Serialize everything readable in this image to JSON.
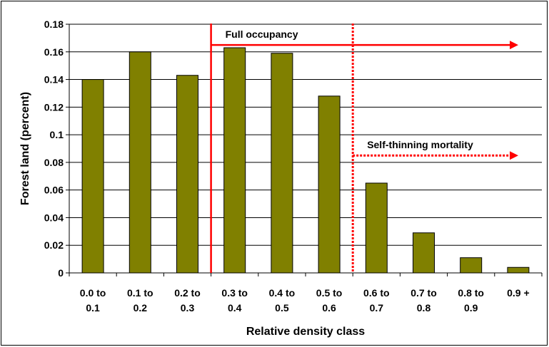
{
  "chart_data": {
    "type": "bar",
    "categories": [
      [
        "0.0 to",
        "0.1"
      ],
      [
        "0.1 to",
        "0.2"
      ],
      [
        "0.2 to",
        "0.3"
      ],
      [
        "0.3 to",
        "0.4"
      ],
      [
        "0.4 to",
        "0.5"
      ],
      [
        "0.5 to",
        "0.6"
      ],
      [
        "0.6 to",
        "0.7"
      ],
      [
        "0.7 to",
        "0.8"
      ],
      [
        "0.8 to",
        "0.9"
      ],
      [
        "0.9 +"
      ]
    ],
    "values": [
      0.14,
      0.16,
      0.143,
      0.163,
      0.159,
      0.128,
      0.065,
      0.029,
      0.011,
      0.004
    ],
    "xlabel": "Relative density class",
    "ylabel": "Forest land (percent)",
    "ylim": [
      0,
      0.18
    ],
    "yticks": [
      "0",
      "0.02",
      "0.04",
      "0.06",
      "0.08",
      "0.1",
      "0.12",
      "0.14",
      "0.16",
      "0.18"
    ],
    "grid": true,
    "bar_color": "#808000",
    "annotations": [
      {
        "label": "Full occupancy",
        "style": "solid",
        "color": "#ff0000",
        "x_start": 0.3,
        "arrow_y": 0.165
      },
      {
        "label": "Self-thinning mortality",
        "style": "dotted",
        "color": "#ff0000",
        "x_start": 0.6,
        "arrow_y": 0.085
      }
    ]
  }
}
